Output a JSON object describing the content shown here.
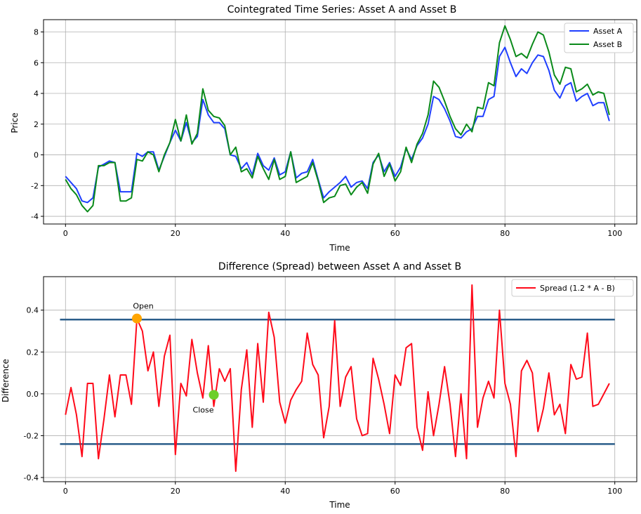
{
  "chart_data": [
    {
      "type": "line",
      "title": "Cointegrated Time Series: Asset A and Asset B",
      "xlabel": "Time",
      "ylabel": "Price",
      "xlim": [
        -4,
        104
      ],
      "ylim": [
        -4.5,
        8.8
      ],
      "xticks": [
        0,
        20,
        40,
        60,
        80,
        100
      ],
      "yticks": [
        -4,
        -2,
        0,
        2,
        4,
        6,
        8
      ],
      "grid": true,
      "legend": "top-right",
      "x": [
        0,
        1,
        2,
        3,
        4,
        5,
        6,
        7,
        8,
        9,
        10,
        11,
        12,
        13,
        14,
        15,
        16,
        17,
        18,
        19,
        20,
        21,
        22,
        23,
        24,
        25,
        26,
        27,
        28,
        29,
        30,
        31,
        32,
        33,
        34,
        35,
        36,
        37,
        38,
        39,
        40,
        41,
        42,
        43,
        44,
        45,
        46,
        47,
        48,
        49,
        50,
        51,
        52,
        53,
        54,
        55,
        56,
        57,
        58,
        59,
        60,
        61,
        62,
        63,
        64,
        65,
        66,
        67,
        68,
        69,
        70,
        71,
        72,
        73,
        74,
        75,
        76,
        77,
        78,
        79,
        80,
        81,
        82,
        83,
        84,
        85,
        86,
        87,
        88,
        89,
        90,
        91,
        92,
        93,
        94,
        95,
        96,
        97,
        98,
        99
      ],
      "series": [
        {
          "name": "Asset A",
          "color": "#1f3fff",
          "values": [
            -1.4,
            -1.8,
            -2.2,
            -3.0,
            -3.1,
            -2.8,
            -0.8,
            -0.6,
            -0.4,
            -0.5,
            -2.4,
            -2.4,
            -2.4,
            0.1,
            -0.1,
            0.2,
            0.2,
            -1.0,
            -0.1,
            0.8,
            1.6,
            0.9,
            2.1,
            0.8,
            1.2,
            3.6,
            2.6,
            2.1,
            2.1,
            1.7,
            0.0,
            -0.1,
            -0.9,
            -0.5,
            -1.3,
            0.1,
            -0.7,
            -1.0,
            -0.2,
            -1.3,
            -1.1,
            0.2,
            -1.5,
            -1.2,
            -1.1,
            -0.3,
            -1.6,
            -2.8,
            -2.4,
            -2.1,
            -1.8,
            -1.4,
            -2.1,
            -1.8,
            -1.7,
            -2.2,
            -0.5,
            0.0,
            -1.1,
            -0.5,
            -1.4,
            -0.8,
            0.4,
            -0.3,
            0.6,
            1.1,
            2.0,
            3.8,
            3.6,
            3.0,
            2.2,
            1.2,
            1.1,
            1.5,
            1.7,
            2.5,
            2.5,
            3.6,
            3.8,
            6.4,
            7.0,
            6.0,
            5.1,
            5.6,
            5.3,
            6.0,
            6.5,
            6.4,
            5.5,
            4.2,
            3.7,
            4.5,
            4.7,
            3.5,
            3.8,
            4.0,
            3.2,
            3.4,
            3.4,
            2.2
          ]
        },
        {
          "name": "Asset B",
          "color": "#0a8a1a",
          "values": [
            -1.6,
            -2.2,
            -2.6,
            -3.3,
            -3.7,
            -3.3,
            -0.7,
            -0.7,
            -0.5,
            -0.5,
            -3.0,
            -3.0,
            -2.8,
            -0.3,
            -0.4,
            0.2,
            0.0,
            -1.1,
            0.0,
            0.8,
            2.3,
            0.9,
            2.6,
            0.7,
            1.4,
            4.3,
            2.9,
            2.5,
            2.4,
            1.9,
            0.0,
            0.5,
            -1.1,
            -0.9,
            -1.5,
            -0.1,
            -0.9,
            -1.6,
            -0.3,
            -1.6,
            -1.4,
            0.2,
            -1.8,
            -1.6,
            -1.4,
            -0.5,
            -1.7,
            -3.1,
            -2.8,
            -2.7,
            -2.0,
            -1.9,
            -2.6,
            -2.1,
            -1.8,
            -2.5,
            -0.6,
            0.1,
            -1.4,
            -0.6,
            -1.7,
            -1.1,
            0.5,
            -0.5,
            0.7,
            1.4,
            2.6,
            4.8,
            4.4,
            3.5,
            2.5,
            1.7,
            1.3,
            2.0,
            1.5,
            3.1,
            3.0,
            4.7,
            4.5,
            7.3,
            8.4,
            7.5,
            6.4,
            6.6,
            6.3,
            7.2,
            8.0,
            7.8,
            6.7,
            5.2,
            4.6,
            5.7,
            5.6,
            4.1,
            4.3,
            4.6,
            3.9,
            4.1,
            4.0,
            2.6
          ]
        }
      ]
    },
    {
      "type": "line",
      "title": "Difference (Spread) between Asset A and Asset B",
      "xlabel": "Time",
      "ylabel": "Difference",
      "xlim": [
        -4,
        104
      ],
      "ylim": [
        -0.42,
        0.56
      ],
      "xticks": [
        0,
        20,
        40,
        60,
        80,
        100
      ],
      "yticks": [
        -0.4,
        -0.2,
        0.0,
        0.2,
        0.4
      ],
      "grid": true,
      "legend": "top-right",
      "x": [
        0,
        1,
        2,
        3,
        4,
        5,
        6,
        7,
        8,
        9,
        10,
        11,
        12,
        13,
        14,
        15,
        16,
        17,
        18,
        19,
        20,
        21,
        22,
        23,
        24,
        25,
        26,
        27,
        28,
        29,
        30,
        31,
        32,
        33,
        34,
        35,
        36,
        37,
        38,
        39,
        40,
        41,
        42,
        43,
        44,
        45,
        46,
        47,
        48,
        49,
        50,
        51,
        52,
        53,
        54,
        55,
        56,
        57,
        58,
        59,
        60,
        61,
        62,
        63,
        64,
        65,
        66,
        67,
        68,
        69,
        70,
        71,
        72,
        73,
        74,
        75,
        76,
        77,
        78,
        79,
        80,
        81,
        82,
        83,
        84,
        85,
        86,
        87,
        88,
        89,
        90,
        91,
        92,
        93,
        94,
        95,
        96,
        97,
        98,
        99
      ],
      "series": [
        {
          "name": "Spread (1.2 * A - B)",
          "color": "#ff0a1a",
          "values": [
            -0.1,
            0.03,
            -0.1,
            -0.3,
            0.05,
            0.05,
            -0.31,
            -0.12,
            0.09,
            -0.11,
            0.09,
            0.09,
            -0.05,
            0.36,
            0.3,
            0.11,
            0.2,
            -0.06,
            0.18,
            0.28,
            -0.29,
            0.05,
            -0.01,
            0.26,
            0.1,
            -0.02,
            0.23,
            -0.06,
            0.12,
            0.06,
            0.12,
            -0.37,
            0.02,
            0.21,
            -0.16,
            0.24,
            -0.04,
            0.39,
            0.27,
            -0.04,
            -0.14,
            -0.03,
            0.02,
            0.06,
            0.29,
            0.14,
            0.09,
            -0.21,
            -0.06,
            0.35,
            -0.06,
            0.08,
            0.13,
            -0.12,
            -0.2,
            -0.19,
            0.17,
            0.07,
            -0.05,
            -0.19,
            0.09,
            0.04,
            0.22,
            0.24,
            -0.16,
            -0.27,
            0.01,
            -0.2,
            -0.05,
            0.13,
            -0.05,
            -0.3,
            0.0,
            -0.31,
            0.52,
            -0.16,
            -0.02,
            0.06,
            -0.02,
            0.4,
            0.05,
            -0.05,
            -0.3,
            0.11,
            0.16,
            0.1,
            -0.18,
            -0.07,
            0.1,
            -0.1,
            -0.05,
            -0.19,
            0.14,
            0.07,
            0.08,
            0.29,
            -0.06,
            -0.05,
            0.0,
            0.05
          ]
        }
      ],
      "thresholds": {
        "color": "#2a5d8a",
        "values": [
          0.355,
          -0.24
        ]
      },
      "annotations": [
        {
          "label": "Open",
          "x": 13,
          "y": 0.36,
          "color": "#ffa500"
        },
        {
          "label": "Close",
          "x": 27,
          "y": -0.005,
          "color": "#6ccf2a"
        }
      ]
    }
  ]
}
